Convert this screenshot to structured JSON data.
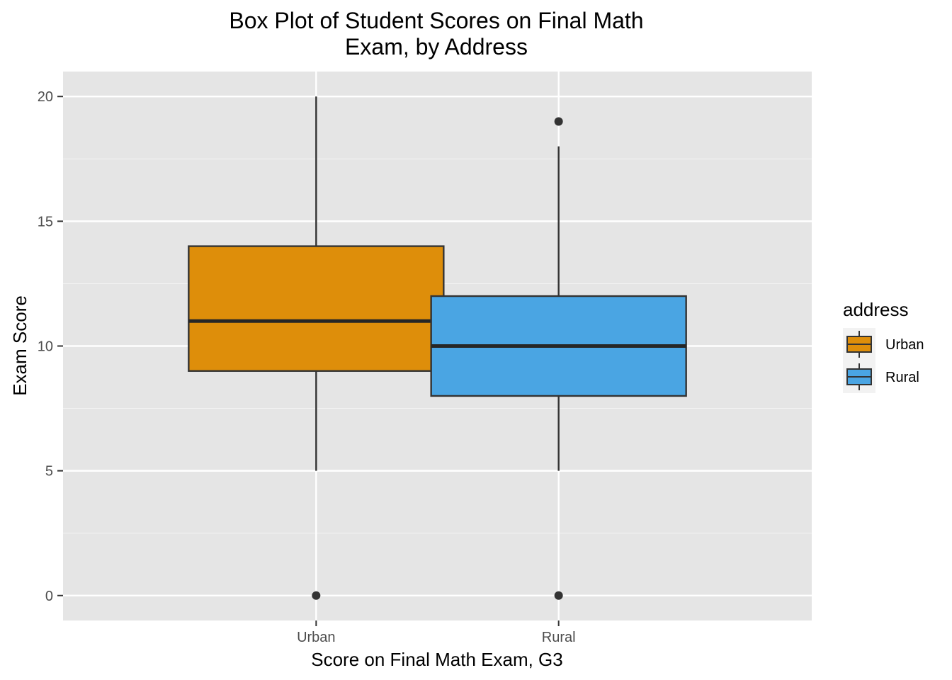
{
  "chart_data": {
    "type": "box",
    "title_line1": "Box Plot of Student Scores on Final Math",
    "title_line2": "Exam, by Address",
    "xlabel": "Score on Final Math Exam, G3",
    "ylabel": "Exam Score",
    "ylim": [
      -1,
      21
    ],
    "yticks": [
      0,
      5,
      10,
      15,
      20
    ],
    "categories": [
      "Urban",
      "Rural"
    ],
    "boxes": [
      {
        "name": "Urban",
        "whisker_low": 5,
        "q1": 9,
        "median": 11,
        "q3": 14,
        "whisker_high": 20,
        "outliers": [
          0
        ],
        "color": "#DE8E0A"
      },
      {
        "name": "Rural",
        "whisker_low": 5,
        "q1": 8,
        "median": 10,
        "q3": 12,
        "whisker_high": 18,
        "outliers": [
          0,
          19
        ],
        "color": "#4AA5E3"
      }
    ],
    "legend": {
      "title": "address",
      "placement": "right",
      "entries": [
        "Urban",
        "Rural"
      ]
    },
    "grid": true,
    "panel_background": "#E5E5E5"
  }
}
